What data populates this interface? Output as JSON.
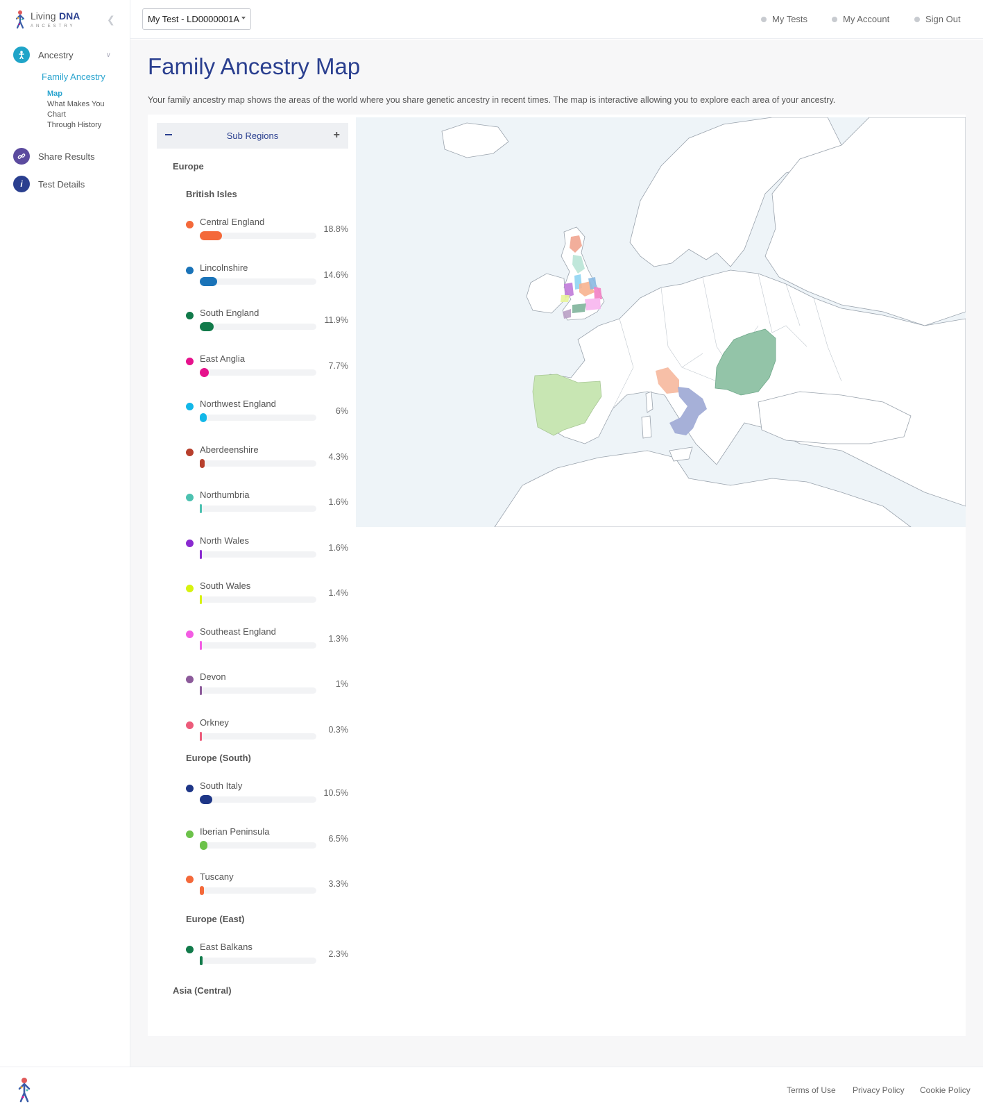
{
  "brand": {
    "living": "Living",
    "dna": "DNA",
    "sub": "ANCESTRY"
  },
  "sidebar": {
    "items": [
      {
        "label": "Ancestry",
        "icon": "person-icon",
        "color": "#1fa4c8"
      },
      {
        "label": "Share Results",
        "icon": "link-icon",
        "color": "#5b4a9e"
      },
      {
        "label": "Test Details",
        "icon": "info-icon",
        "color": "#2a3f8f"
      }
    ],
    "family_ancestry": "Family Ancestry",
    "map": "Map",
    "what_makes_you_1": "What Makes You",
    "what_makes_you_2": "Chart",
    "through_history": "Through History"
  },
  "topbar": {
    "test_select": "My Test - LD0000001A",
    "my_tests": "My Tests",
    "my_account": "My Account",
    "sign_out": "Sign Out"
  },
  "page": {
    "title": "Family Ancestry Map",
    "description": "Your family ancestry map shows the areas of the world where you share genetic ancestry in recent times. The map is interactive allowing you to explore each area of your ancestry."
  },
  "panel": {
    "header": "Sub Regions",
    "continent": "Europe",
    "last_continent": "Asia (Central)",
    "groups": [
      {
        "name": "British Isles",
        "rows": [
          {
            "name": "Central England",
            "pct": "18.8%",
            "value": 18.8,
            "color": "#f4693a"
          },
          {
            "name": "Lincolnshire",
            "pct": "14.6%",
            "value": 14.6,
            "color": "#1a73b8"
          },
          {
            "name": "South England",
            "pct": "11.9%",
            "value": 11.9,
            "color": "#117a4a"
          },
          {
            "name": "East Anglia",
            "pct": "7.7%",
            "value": 7.7,
            "color": "#e6128c"
          },
          {
            "name": "Northwest England",
            "pct": "6%",
            "value": 6,
            "color": "#12b7e8"
          },
          {
            "name": "Aberdeenshire",
            "pct": "4.3%",
            "value": 4.3,
            "color": "#b73f2c"
          },
          {
            "name": "Northumbria",
            "pct": "1.6%",
            "value": 1.6,
            "color": "#4cc1b0"
          },
          {
            "name": "North Wales",
            "pct": "1.6%",
            "value": 1.6,
            "color": "#8a2ad0"
          },
          {
            "name": "South Wales",
            "pct": "1.4%",
            "value": 1.4,
            "color": "#d7f20f"
          },
          {
            "name": "Southeast England",
            "pct": "1.3%",
            "value": 1.3,
            "color": "#f35ce3"
          },
          {
            "name": "Devon",
            "pct": "1%",
            "value": 1,
            "color": "#8c5a9a"
          },
          {
            "name": "Orkney",
            "pct": "0.3%",
            "value": 0.3,
            "color": "#ec5b7a"
          }
        ]
      },
      {
        "name": "Europe (South)",
        "rows": [
          {
            "name": "South Italy",
            "pct": "10.5%",
            "value": 10.5,
            "color": "#1e3687"
          },
          {
            "name": "Iberian Peninsula",
            "pct": "6.5%",
            "value": 6.5,
            "color": "#6cc24a"
          },
          {
            "name": "Tuscany",
            "pct": "3.3%",
            "value": 3.3,
            "color": "#f4693a"
          }
        ]
      },
      {
        "name": "Europe (East)",
        "rows": [
          {
            "name": "East Balkans",
            "pct": "2.3%",
            "value": 2.3,
            "color": "#117a4a"
          }
        ]
      }
    ]
  },
  "footer": {
    "terms": "Terms of Use",
    "privacy": "Privacy Policy",
    "cookie": "Cookie Policy"
  }
}
